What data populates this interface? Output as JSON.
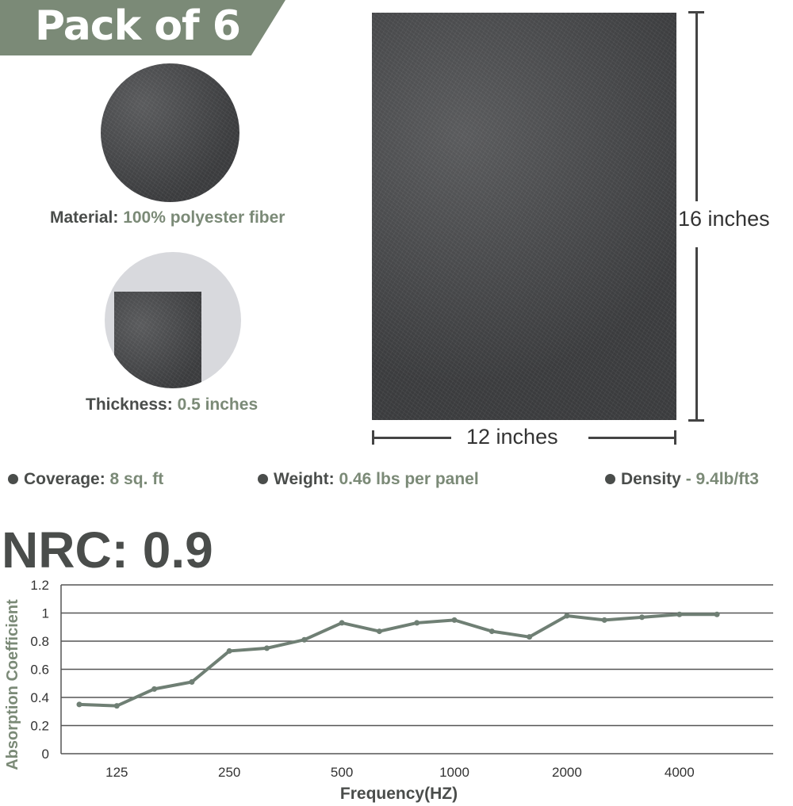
{
  "banner": {
    "title": "Pack of 6"
  },
  "material": {
    "label": "Material:",
    "value": "100% polyester fiber"
  },
  "thickness": {
    "label": "Thickness:",
    "value": "0.5 inches"
  },
  "dimensions": {
    "height": "16 inches",
    "width": "12 inches"
  },
  "specs": [
    {
      "label": "Coverage:",
      "value": "8 sq. ft"
    },
    {
      "label": "Weight:",
      "value": "0.46 lbs per panel"
    },
    {
      "label": "Density",
      "value": "- 9.4lb/ft3"
    }
  ],
  "nrc": "NRC: 0.9",
  "colors": {
    "accent": "#7b8a77",
    "text": "#4a4d4b",
    "line": "#6f7f74"
  },
  "chart_data": {
    "type": "line",
    "xlabel": "Frequency(HZ)",
    "ylabel": "Absorption Coefficient",
    "ylim": [
      0,
      1.2
    ],
    "yticks": [
      "0",
      "0.2",
      "0.4",
      "0.6",
      "0.8",
      "1",
      "1.2"
    ],
    "xtick_labels": [
      "125",
      "250",
      "500",
      "1000",
      "2000",
      "4000"
    ],
    "grid": true,
    "x": [
      100,
      125,
      160,
      200,
      250,
      315,
      400,
      500,
      630,
      800,
      1000,
      1250,
      1600,
      2000,
      2500,
      3150,
      4000,
      5000
    ],
    "values": [
      0.35,
      0.34,
      0.46,
      0.51,
      0.73,
      0.75,
      0.81,
      0.93,
      0.87,
      0.93,
      0.95,
      0.87,
      0.83,
      0.98,
      0.95,
      0.97,
      0.99,
      0.99
    ]
  }
}
